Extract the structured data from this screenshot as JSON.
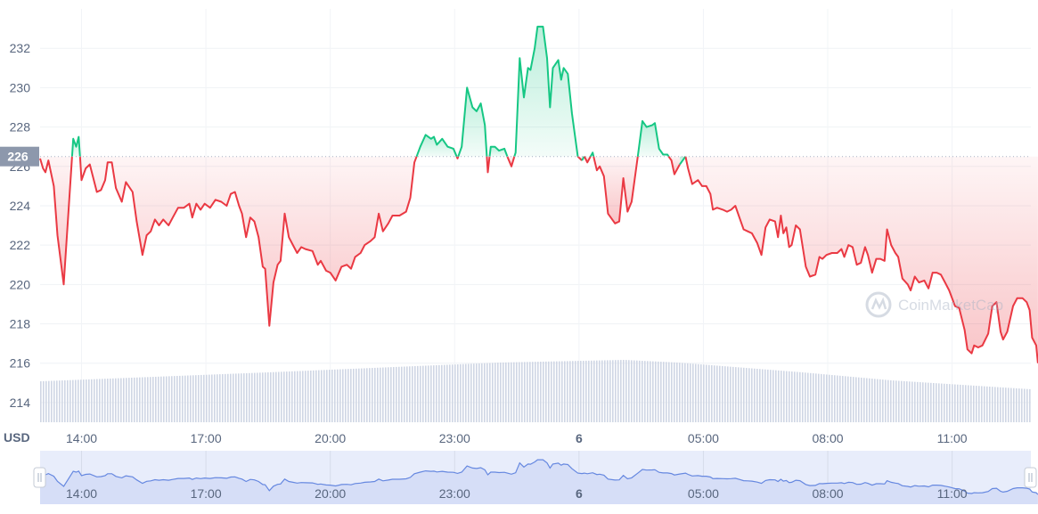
{
  "chart_data": {
    "type": "line",
    "currency_label": "USD",
    "current_price_label": "226",
    "reference_price": 226.5,
    "ylim": [
      213,
      234
    ],
    "y_ticks": [
      214,
      216,
      218,
      220,
      222,
      224,
      226,
      228,
      230,
      232
    ],
    "y_tick_labels": [
      "214",
      "216",
      "218",
      "220",
      "222",
      "224",
      "226",
      "228",
      "230",
      "232"
    ],
    "x_range_hours": [
      13.0,
      36.9
    ],
    "x_ticks": [
      14,
      17,
      20,
      23,
      26,
      29,
      32,
      35
    ],
    "x_tick_labels": [
      "14:00",
      "17:00",
      "20:00",
      "23:00",
      "6",
      "05:00",
      "08:00",
      "11:00"
    ],
    "watermark": "CoinMarketCap",
    "colors": {
      "above": "#16c784",
      "below": "#ea3943",
      "volume": "#cfd6e4",
      "navigator_line": "#6688e0",
      "navigator_fill": "#e8edfb",
      "axis_text": "#58667e"
    },
    "series": [
      {
        "values": [
          [
            13.0,
            226.4
          ],
          [
            13.07,
            225.9
          ],
          [
            13.13,
            225.7
          ],
          [
            13.2,
            226.3
          ],
          [
            13.33,
            225.0
          ],
          [
            13.42,
            222.5
          ],
          [
            13.57,
            220.0
          ],
          [
            13.8,
            227.4
          ],
          [
            13.87,
            227.0
          ],
          [
            13.93,
            227.5
          ],
          [
            14.0,
            225.3
          ],
          [
            14.1,
            225.9
          ],
          [
            14.2,
            226.1
          ],
          [
            14.37,
            224.7
          ],
          [
            14.47,
            224.8
          ],
          [
            14.57,
            225.3
          ],
          [
            14.63,
            226.2
          ],
          [
            14.73,
            226.2
          ],
          [
            14.83,
            224.9
          ],
          [
            14.97,
            224.2
          ],
          [
            15.07,
            225.2
          ],
          [
            15.23,
            224.7
          ],
          [
            15.33,
            223.2
          ],
          [
            15.47,
            221.5
          ],
          [
            15.57,
            222.5
          ],
          [
            15.67,
            222.7
          ],
          [
            15.77,
            223.3
          ],
          [
            15.87,
            223.0
          ],
          [
            15.97,
            223.3
          ],
          [
            16.1,
            223.0
          ],
          [
            16.2,
            223.4
          ],
          [
            16.33,
            223.9
          ],
          [
            16.47,
            223.9
          ],
          [
            16.6,
            224.1
          ],
          [
            16.67,
            223.4
          ],
          [
            16.77,
            224.1
          ],
          [
            16.87,
            223.8
          ],
          [
            16.97,
            224.1
          ],
          [
            17.1,
            223.9
          ],
          [
            17.23,
            224.3
          ],
          [
            17.37,
            224.2
          ],
          [
            17.5,
            224.0
          ],
          [
            17.6,
            224.6
          ],
          [
            17.7,
            224.7
          ],
          [
            17.8,
            224.0
          ],
          [
            17.87,
            223.6
          ],
          [
            17.97,
            222.4
          ],
          [
            18.07,
            223.4
          ],
          [
            18.17,
            223.2
          ],
          [
            18.27,
            222.4
          ],
          [
            18.37,
            220.9
          ],
          [
            18.43,
            220.8
          ],
          [
            18.53,
            217.9
          ],
          [
            18.63,
            220.1
          ],
          [
            18.73,
            221.0
          ],
          [
            18.8,
            221.2
          ],
          [
            18.9,
            223.6
          ],
          [
            19.0,
            222.4
          ],
          [
            19.1,
            222.0
          ],
          [
            19.2,
            221.6
          ],
          [
            19.3,
            221.9
          ],
          [
            19.4,
            221.8
          ],
          [
            19.57,
            221.7
          ],
          [
            19.7,
            221.0
          ],
          [
            19.77,
            221.2
          ],
          [
            19.9,
            220.7
          ],
          [
            20.0,
            220.6
          ],
          [
            20.13,
            220.2
          ],
          [
            20.27,
            220.9
          ],
          [
            20.4,
            221.0
          ],
          [
            20.5,
            220.8
          ],
          [
            20.6,
            221.4
          ],
          [
            20.73,
            221.6
          ],
          [
            20.83,
            222.0
          ],
          [
            20.97,
            222.2
          ],
          [
            21.07,
            222.4
          ],
          [
            21.17,
            223.6
          ],
          [
            21.27,
            222.7
          ],
          [
            21.4,
            223.1
          ],
          [
            21.5,
            223.5
          ],
          [
            21.67,
            223.5
          ],
          [
            21.83,
            223.7
          ],
          [
            21.93,
            224.4
          ],
          [
            22.03,
            226.2
          ],
          [
            22.17,
            227.0
          ],
          [
            22.3,
            227.6
          ],
          [
            22.43,
            227.4
          ],
          [
            22.5,
            227.5
          ],
          [
            22.57,
            227.1
          ],
          [
            22.7,
            227.4
          ],
          [
            22.83,
            227.0
          ],
          [
            22.97,
            226.9
          ],
          [
            23.07,
            226.4
          ],
          [
            23.17,
            227.0
          ],
          [
            23.3,
            230.0
          ],
          [
            23.43,
            229.0
          ],
          [
            23.53,
            228.8
          ],
          [
            23.63,
            229.2
          ],
          [
            23.73,
            228.1
          ],
          [
            23.8,
            225.7
          ],
          [
            23.87,
            227.0
          ],
          [
            23.97,
            227.0
          ],
          [
            24.07,
            226.8
          ],
          [
            24.2,
            226.9
          ],
          [
            24.27,
            226.5
          ],
          [
            24.37,
            226.0
          ],
          [
            24.47,
            226.7
          ],
          [
            24.57,
            231.5
          ],
          [
            24.67,
            229.5
          ],
          [
            24.77,
            231.0
          ],
          [
            24.83,
            230.9
          ],
          [
            24.93,
            232.0
          ],
          [
            25.0,
            233.1
          ],
          [
            25.13,
            233.1
          ],
          [
            25.23,
            231.5
          ],
          [
            25.3,
            229.0
          ],
          [
            25.37,
            231.0
          ],
          [
            25.5,
            231.4
          ],
          [
            25.57,
            230.4
          ],
          [
            25.63,
            231.0
          ],
          [
            25.73,
            230.7
          ],
          [
            25.83,
            228.7
          ],
          [
            25.97,
            226.5
          ],
          [
            26.07,
            226.3
          ],
          [
            26.13,
            226.5
          ],
          [
            26.2,
            226.2
          ],
          [
            26.33,
            226.7
          ],
          [
            26.43,
            225.8
          ],
          [
            26.5,
            226.0
          ],
          [
            26.6,
            225.5
          ],
          [
            26.7,
            223.6
          ],
          [
            26.87,
            223.1
          ],
          [
            26.97,
            223.2
          ],
          [
            27.07,
            225.4
          ],
          [
            27.17,
            223.7
          ],
          [
            27.27,
            224.2
          ],
          [
            27.43,
            226.7
          ],
          [
            27.53,
            228.3
          ],
          [
            27.63,
            228.0
          ],
          [
            27.77,
            228.1
          ],
          [
            27.83,
            228.2
          ],
          [
            27.93,
            226.9
          ],
          [
            28.03,
            226.6
          ],
          [
            28.13,
            226.6
          ],
          [
            28.23,
            226.3
          ],
          [
            28.3,
            225.6
          ],
          [
            28.43,
            226.1
          ],
          [
            28.57,
            226.5
          ],
          [
            28.63,
            225.9
          ],
          [
            28.73,
            225.1
          ],
          [
            28.87,
            225.3
          ],
          [
            28.97,
            225.0
          ],
          [
            29.07,
            225.0
          ],
          [
            29.17,
            224.6
          ],
          [
            29.23,
            223.8
          ],
          [
            29.33,
            223.9
          ],
          [
            29.47,
            223.8
          ],
          [
            29.57,
            223.7
          ],
          [
            29.67,
            223.8
          ],
          [
            29.77,
            224.0
          ],
          [
            29.87,
            223.4
          ],
          [
            29.97,
            222.8
          ],
          [
            30.07,
            222.7
          ],
          [
            30.17,
            222.6
          ],
          [
            30.3,
            222.1
          ],
          [
            30.4,
            221.5
          ],
          [
            30.5,
            222.9
          ],
          [
            30.6,
            223.3
          ],
          [
            30.73,
            223.2
          ],
          [
            30.8,
            222.4
          ],
          [
            30.87,
            223.5
          ],
          [
            30.93,
            222.6
          ],
          [
            31.0,
            222.9
          ],
          [
            31.07,
            221.9
          ],
          [
            31.13,
            222.0
          ],
          [
            31.23,
            223.0
          ],
          [
            31.33,
            222.8
          ],
          [
            31.47,
            220.9
          ],
          [
            31.57,
            220.4
          ],
          [
            31.7,
            220.5
          ],
          [
            31.8,
            221.4
          ],
          [
            31.87,
            221.3
          ],
          [
            31.97,
            221.5
          ],
          [
            32.1,
            221.6
          ],
          [
            32.23,
            221.6
          ],
          [
            32.33,
            221.8
          ],
          [
            32.4,
            221.4
          ],
          [
            32.5,
            222.0
          ],
          [
            32.6,
            221.9
          ],
          [
            32.7,
            221.0
          ],
          [
            32.8,
            221.1
          ],
          [
            32.9,
            221.9
          ],
          [
            32.97,
            221.5
          ],
          [
            33.07,
            220.6
          ],
          [
            33.17,
            221.3
          ],
          [
            33.27,
            221.3
          ],
          [
            33.37,
            221.2
          ],
          [
            33.43,
            222.8
          ],
          [
            33.53,
            222.0
          ],
          [
            33.63,
            221.6
          ],
          [
            33.7,
            221.4
          ],
          [
            33.8,
            220.3
          ],
          [
            33.93,
            220.0
          ],
          [
            34.0,
            219.7
          ],
          [
            34.1,
            220.4
          ],
          [
            34.2,
            220.1
          ],
          [
            34.33,
            220.2
          ],
          [
            34.43,
            219.8
          ],
          [
            34.53,
            220.6
          ],
          [
            34.63,
            220.6
          ],
          [
            34.73,
            220.5
          ],
          [
            34.83,
            220.1
          ],
          [
            34.93,
            219.7
          ],
          [
            35.07,
            218.9
          ],
          [
            35.17,
            218.8
          ],
          [
            35.3,
            217.7
          ],
          [
            35.37,
            216.7
          ],
          [
            35.47,
            216.5
          ],
          [
            35.53,
            216.9
          ],
          [
            35.63,
            216.8
          ],
          [
            35.73,
            216.9
          ],
          [
            35.87,
            217.5
          ],
          [
            35.97,
            218.9
          ],
          [
            36.07,
            219.1
          ],
          [
            36.17,
            217.6
          ],
          [
            36.23,
            217.2
          ],
          [
            36.33,
            217.6
          ],
          [
            36.47,
            218.9
          ],
          [
            36.57,
            219.3
          ],
          [
            36.7,
            219.3
          ],
          [
            36.8,
            219.1
          ],
          [
            36.87,
            218.7
          ],
          [
            36.93,
            217.3
          ],
          [
            37.03,
            216.9
          ],
          [
            37.07,
            216.0
          ]
        ]
      }
    ]
  }
}
